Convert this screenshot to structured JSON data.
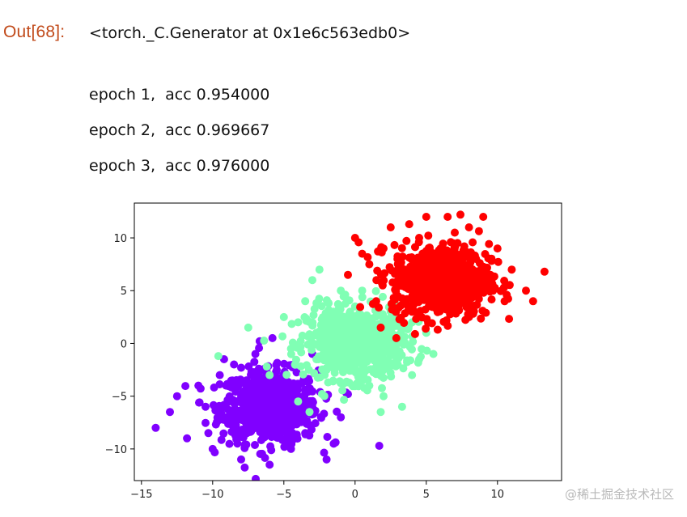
{
  "cell": {
    "out_prompt": "Out[68]:",
    "output_repr": "<torch._C.Generator at 0x1e6c563edb0>",
    "stdout_lines": [
      "epoch 1,  acc 0.954000",
      "epoch 2,  acc 0.969667",
      "epoch 3,  acc 0.976000"
    ]
  },
  "watermark": "@稀土掘金技术社区",
  "chart_data": {
    "type": "scatter",
    "title": "",
    "xlabel": "",
    "ylabel": "",
    "xlim": [
      -15.5,
      14.5
    ],
    "ylim": [
      -13,
      13.3
    ],
    "xticks": [
      -15,
      -10,
      -5,
      0,
      5,
      10
    ],
    "yticks": [
      -10,
      -5,
      0,
      5,
      10
    ],
    "xtick_labels": [
      "−15",
      "−10",
      "−5",
      "0",
      "5",
      "10"
    ],
    "ytick_labels": [
      "−10",
      "−5",
      "0",
      "5",
      "10"
    ],
    "grid": false,
    "legend": "none",
    "series": [
      {
        "color": "#8000ff",
        "center": [
          -6,
          -6
        ],
        "std": 2,
        "points": [
          [
            -14,
            -8
          ],
          [
            -13,
            -6.5
          ],
          [
            -12.5,
            -5
          ],
          [
            -11.8,
            -9
          ],
          [
            -11,
            -4
          ],
          [
            -10.5,
            -6
          ],
          [
            -10,
            -10
          ],
          [
            -9.5,
            -3
          ],
          [
            -9,
            -7
          ],
          [
            -8.5,
            -2
          ],
          [
            -8,
            -11
          ],
          [
            -8,
            -5
          ],
          [
            -7.5,
            -8
          ],
          [
            -7,
            -1
          ],
          [
            -7,
            -4
          ],
          [
            -6.5,
            -9
          ],
          [
            -6,
            -6
          ],
          [
            -6,
            -11.5
          ],
          [
            -5.5,
            -2.5
          ],
          [
            -5,
            -7
          ],
          [
            -4.5,
            -10
          ],
          [
            -4,
            -4
          ],
          [
            -3.5,
            -8.5
          ],
          [
            -3,
            -1
          ],
          [
            -3,
            -6
          ],
          [
            -2.5,
            -3
          ],
          [
            -2,
            -11
          ],
          [
            -1.5,
            -9.5
          ],
          [
            -1,
            -7
          ],
          [
            -0.5,
            -4.8
          ],
          [
            1.7,
            -9.7
          ],
          [
            -9.2,
            -1.5
          ],
          [
            -6.7,
            0.2
          ],
          [
            -5.8,
            0.5
          ],
          [
            -10.3,
            -8.5
          ]
        ]
      },
      {
        "color": "#80ffb4",
        "center": [
          0,
          0
        ],
        "std": 2,
        "points": [
          [
            -7.5,
            1.5
          ],
          [
            -5,
            2.5
          ],
          [
            -4.5,
            -0.5
          ],
          [
            -4,
            2
          ],
          [
            -3.5,
            4
          ],
          [
            -3,
            6
          ],
          [
            -2.5,
            7
          ],
          [
            -2,
            1
          ],
          [
            -2,
            -2.5
          ],
          [
            -1.5,
            3
          ],
          [
            -1,
            5
          ],
          [
            -1,
            -1
          ],
          [
            -0.5,
            1.5
          ],
          [
            0,
            0
          ],
          [
            0,
            3.5
          ],
          [
            0.5,
            -2
          ],
          [
            0.5,
            5
          ],
          [
            1,
            2
          ],
          [
            1,
            -4
          ],
          [
            1.5,
            -1
          ],
          [
            2,
            1
          ],
          [
            2,
            -5
          ],
          [
            2.5,
            3
          ],
          [
            3,
            -2
          ],
          [
            3,
            4.5
          ],
          [
            3.5,
            0
          ],
          [
            4,
            2
          ],
          [
            4,
            -3
          ],
          [
            4.5,
            -1.5
          ],
          [
            5,
            1
          ],
          [
            5.5,
            -1
          ],
          [
            3.3,
            -6
          ],
          [
            1.8,
            -6.5
          ],
          [
            -6,
            -3
          ],
          [
            -4,
            -5.5
          ],
          [
            -3.2,
            -6.5
          ],
          [
            -6.2,
            -2.2
          ],
          [
            -9.6,
            -1.2
          ]
        ]
      },
      {
        "color": "#ff0000",
        "center": [
          6,
          6
        ],
        "std": 2,
        "points": [
          [
            0,
            10
          ],
          [
            0.5,
            8.5
          ],
          [
            1,
            7.5
          ],
          [
            1.5,
            6
          ],
          [
            2,
            9
          ],
          [
            2.5,
            11
          ],
          [
            3,
            4.5
          ],
          [
            3.5,
            7
          ],
          [
            4,
            8
          ],
          [
            4,
            3
          ],
          [
            4.5,
            10
          ],
          [
            5,
            5
          ],
          [
            5,
            12
          ],
          [
            5.5,
            6.5
          ],
          [
            6,
            9
          ],
          [
            6,
            3.5
          ],
          [
            6.5,
            12
          ],
          [
            7,
            5
          ],
          [
            7,
            10.5
          ],
          [
            7.5,
            7
          ],
          [
            8,
            11
          ],
          [
            8,
            2.5
          ],
          [
            8.5,
            8
          ],
          [
            9,
            5
          ],
          [
            9,
            12
          ],
          [
            9.5,
            6.5
          ],
          [
            10,
            9
          ],
          [
            10.5,
            4
          ],
          [
            11,
            7
          ],
          [
            12,
            5
          ],
          [
            12.5,
            4
          ],
          [
            13.3,
            6.8
          ],
          [
            -0.5,
            6.5
          ],
          [
            1.8,
            1.5
          ],
          [
            2.9,
            0.5
          ],
          [
            7.4,
            12.2
          ],
          [
            3.8,
            11.3
          ],
          [
            5.8,
            1.3
          ]
        ]
      }
    ]
  }
}
